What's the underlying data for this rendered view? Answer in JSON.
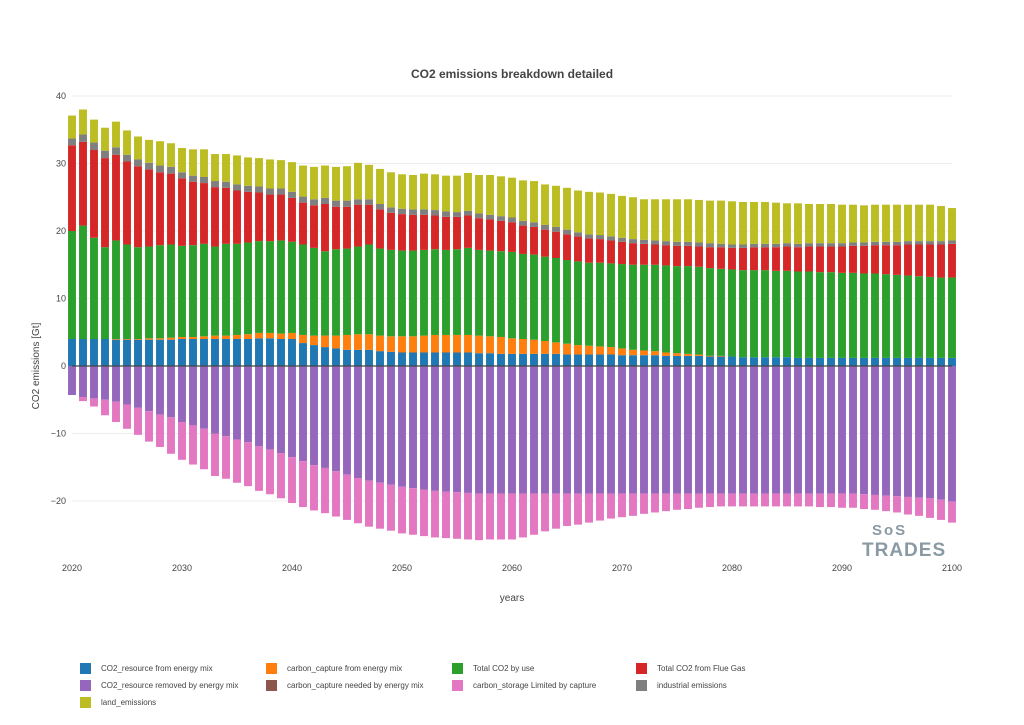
{
  "chart_data": {
    "type": "bar",
    "stacked": true,
    "title": "CO2 emissions breakdown detailed",
    "xlabel": "years",
    "ylabel": "CO2 emissions [Gt]",
    "xlim": [
      2020,
      2100
    ],
    "ylim": [
      -27,
      40
    ],
    "x_ticks": [
      "2020",
      "2030",
      "2040",
      "2050",
      "2060",
      "2070",
      "2080",
      "2090",
      "2100"
    ],
    "y_ticks": [
      "40",
      "30",
      "20",
      "10",
      "0",
      "−10",
      "−20"
    ],
    "grid": true,
    "legend_position": "bottom",
    "x": [
      2020,
      2021,
      2022,
      2023,
      2024,
      2025,
      2026,
      2027,
      2028,
      2029,
      2030,
      2031,
      2032,
      2033,
      2034,
      2035,
      2036,
      2037,
      2038,
      2039,
      2040,
      2041,
      2042,
      2043,
      2044,
      2045,
      2046,
      2047,
      2048,
      2049,
      2050,
      2051,
      2052,
      2053,
      2054,
      2055,
      2056,
      2057,
      2058,
      2059,
      2060,
      2061,
      2062,
      2063,
      2064,
      2065,
      2066,
      2067,
      2068,
      2069,
      2070,
      2071,
      2072,
      2073,
      2074,
      2075,
      2076,
      2077,
      2078,
      2079,
      2080,
      2081,
      2082,
      2083,
      2084,
      2085,
      2086,
      2087,
      2088,
      2089,
      2090,
      2091,
      2092,
      2093,
      2094,
      2095,
      2096,
      2097,
      2098,
      2099,
      2100
    ],
    "series": [
      {
        "name": "CO2_resource from energy mix",
        "color": "#1f77b4",
        "values": [
          4.0,
          4.0,
          4.0,
          4.0,
          3.9,
          3.9,
          3.9,
          3.9,
          3.9,
          3.9,
          4.0,
          4.0,
          4.0,
          4.0,
          4.0,
          4.0,
          4.0,
          4.1,
          4.1,
          4.0,
          4.0,
          3.4,
          3.1,
          2.8,
          2.6,
          2.4,
          2.4,
          2.4,
          2.2,
          2.1,
          2.0,
          2.0,
          2.0,
          2.0,
          2.0,
          2.0,
          2.0,
          1.9,
          1.9,
          1.8,
          1.8,
          1.8,
          1.8,
          1.8,
          1.8,
          1.7,
          1.7,
          1.7,
          1.7,
          1.7,
          1.6,
          1.6,
          1.6,
          1.6,
          1.5,
          1.5,
          1.5,
          1.5,
          1.4,
          1.4,
          1.4,
          1.3,
          1.3,
          1.3,
          1.3,
          1.3,
          1.2,
          1.2,
          1.2,
          1.2,
          1.2,
          1.2,
          1.2,
          1.2,
          1.2,
          1.2,
          1.2,
          1.2,
          1.2,
          1.2,
          1.2
        ]
      },
      {
        "name": "carbon_capture from energy mix",
        "color": "#ff7f0e",
        "values": [
          0.0,
          0.0,
          0.0,
          0.0,
          0.1,
          0.1,
          0.1,
          0.2,
          0.2,
          0.3,
          0.3,
          0.3,
          0.4,
          0.5,
          0.5,
          0.6,
          0.7,
          0.8,
          0.8,
          0.8,
          0.9,
          1.2,
          1.4,
          1.7,
          1.9,
          2.2,
          2.3,
          2.3,
          2.3,
          2.3,
          2.4,
          2.4,
          2.5,
          2.6,
          2.6,
          2.6,
          2.6,
          2.6,
          2.5,
          2.5,
          2.3,
          2.2,
          2.1,
          1.9,
          1.7,
          1.6,
          1.4,
          1.3,
          1.2,
          1.1,
          1.0,
          0.8,
          0.7,
          0.6,
          0.5,
          0.4,
          0.3,
          0.2,
          0.1,
          0.1,
          0.0,
          0.0,
          0.0,
          0.0,
          0.0,
          0.0,
          0.0,
          0.0,
          0.0,
          0.0,
          0.0,
          0.0,
          0.0,
          0.0,
          0.0,
          0.0,
          0.0,
          0.0,
          0.0,
          0.0,
          0.0
        ]
      },
      {
        "name": "Total CO2 by use",
        "color": "#2ca02c",
        "values": [
          16.0,
          16.8,
          15.0,
          13.6,
          14.6,
          14.0,
          13.6,
          13.6,
          13.8,
          13.8,
          13.5,
          13.6,
          13.7,
          13.2,
          13.6,
          13.5,
          13.6,
          13.6,
          13.6,
          13.8,
          13.5,
          13.4,
          13.0,
          12.5,
          12.8,
          12.8,
          13.0,
          13.3,
          12.9,
          12.8,
          12.7,
          12.7,
          12.7,
          12.7,
          12.6,
          12.7,
          12.9,
          12.7,
          12.7,
          12.7,
          12.8,
          12.6,
          12.6,
          12.5,
          12.5,
          12.4,
          12.4,
          12.3,
          12.4,
          12.4,
          12.5,
          12.6,
          12.7,
          12.8,
          12.9,
          12.9,
          13.0,
          13.0,
          13.0,
          12.9,
          12.9,
          12.9,
          12.9,
          12.9,
          12.8,
          12.8,
          12.8,
          12.8,
          12.7,
          12.7,
          12.6,
          12.6,
          12.5,
          12.5,
          12.4,
          12.3,
          12.2,
          12.1,
          12.0,
          11.9,
          11.9
        ]
      },
      {
        "name": "Total CO2 from Flue Gas",
        "color": "#d62728",
        "values": [
          12.7,
          12.4,
          13.0,
          13.2,
          12.7,
          12.3,
          12.0,
          11.4,
          10.8,
          10.5,
          10.0,
          9.4,
          9.0,
          8.8,
          8.3,
          7.9,
          7.5,
          7.2,
          6.9,
          6.8,
          6.5,
          6.2,
          6.3,
          7.0,
          6.3,
          6.2,
          6.2,
          5.9,
          5.8,
          5.5,
          5.4,
          5.3,
          5.2,
          5.0,
          4.9,
          4.8,
          4.8,
          4.7,
          4.6,
          4.5,
          4.4,
          4.2,
          4.1,
          4.0,
          3.9,
          3.8,
          3.7,
          3.6,
          3.5,
          3.4,
          3.3,
          3.2,
          3.1,
          3.0,
          3.0,
          3.0,
          3.0,
          3.0,
          3.1,
          3.2,
          3.2,
          3.3,
          3.4,
          3.4,
          3.5,
          3.6,
          3.6,
          3.7,
          3.8,
          3.8,
          3.9,
          4.0,
          4.1,
          4.2,
          4.3,
          4.4,
          4.6,
          4.7,
          4.8,
          4.9,
          5.0
        ]
      },
      {
        "name": "carbon_capture needed by energy mix",
        "color": "#8c564b",
        "values": [
          0.0,
          0.0,
          0.0,
          0.0,
          0.0,
          0.0,
          0.0,
          0.0,
          0.0,
          0.0,
          0.0,
          0.0,
          0.0,
          0.0,
          0.0,
          0.0,
          0.0,
          0.0,
          0.0,
          0.0,
          0.0,
          0.0,
          0.0,
          0.0,
          0.0,
          0.0,
          0.0,
          0.0,
          0.0,
          0.0,
          0.0,
          0.0,
          0.0,
          0.0,
          0.0,
          0.0,
          0.0,
          0.0,
          0.0,
          0.0,
          0.0,
          0.0,
          0.0,
          0.0,
          0.0,
          0.0,
          0.0,
          0.0,
          0.0,
          0.0,
          0.0,
          0.0,
          0.0,
          0.0,
          0.0,
          0.0,
          0.0,
          0.0,
          0.0,
          0.0,
          0.0,
          0.0,
          0.0,
          0.0,
          0.0,
          0.0,
          0.0,
          0.0,
          0.0,
          0.0,
          0.0,
          0.0,
          0.0,
          0.0,
          0.0,
          0.0,
          0.0,
          0.0,
          0.0,
          0.0,
          0.0
        ]
      },
      {
        "name": "industrial emissions",
        "color": "#7f7f7f",
        "values": [
          1.0,
          1.1,
          1.1,
          1.1,
          1.1,
          1.0,
          1.0,
          1.0,
          1.0,
          1.0,
          0.9,
          0.9,
          0.9,
          0.9,
          0.9,
          0.9,
          0.9,
          0.9,
          0.9,
          0.9,
          0.9,
          0.9,
          0.9,
          0.9,
          0.9,
          0.9,
          0.8,
          0.8,
          0.8,
          0.8,
          0.8,
          0.8,
          0.8,
          0.8,
          0.8,
          0.7,
          0.7,
          0.7,
          0.7,
          0.7,
          0.7,
          0.7,
          0.7,
          0.7,
          0.7,
          0.7,
          0.6,
          0.6,
          0.6,
          0.6,
          0.6,
          0.6,
          0.6,
          0.6,
          0.6,
          0.6,
          0.6,
          0.6,
          0.6,
          0.5,
          0.5,
          0.5,
          0.5,
          0.5,
          0.5,
          0.5,
          0.5,
          0.5,
          0.5,
          0.5,
          0.5,
          0.5,
          0.5,
          0.5,
          0.5,
          0.5,
          0.5,
          0.5,
          0.5,
          0.5,
          0.5
        ]
      },
      {
        "name": "land_emissions",
        "color": "#bcbd22",
        "values": [
          3.4,
          3.7,
          3.4,
          3.4,
          3.8,
          3.6,
          3.4,
          3.4,
          3.6,
          3.5,
          3.6,
          3.9,
          4.1,
          4.0,
          4.1,
          4.3,
          4.2,
          4.2,
          4.3,
          4.2,
          4.4,
          4.6,
          4.8,
          4.8,
          5.0,
          5.1,
          5.4,
          5.1,
          5.2,
          5.2,
          5.1,
          5.1,
          5.3,
          5.3,
          5.3,
          5.4,
          5.6,
          5.7,
          5.9,
          5.9,
          5.9,
          6.0,
          6.1,
          6.0,
          6.1,
          6.2,
          6.2,
          6.3,
          6.3,
          6.3,
          6.2,
          6.2,
          6.0,
          6.1,
          6.2,
          6.3,
          6.3,
          6.3,
          6.3,
          6.4,
          6.4,
          6.3,
          6.2,
          6.2,
          6.1,
          5.9,
          6.0,
          5.8,
          5.8,
          5.8,
          5.7,
          5.6,
          5.5,
          5.5,
          5.5,
          5.5,
          5.4,
          5.4,
          5.4,
          5.2,
          4.8
        ]
      },
      {
        "name": "CO2_resource removed by energy mix",
        "color": "#9467bd",
        "values": [
          -4.3,
          -4.6,
          -4.8,
          -5.0,
          -5.3,
          -5.7,
          -6.2,
          -6.7,
          -7.2,
          -7.6,
          -8.3,
          -8.8,
          -9.3,
          -10.0,
          -10.4,
          -10.9,
          -11.3,
          -11.9,
          -12.4,
          -12.9,
          -13.5,
          -14.1,
          -14.7,
          -15.1,
          -15.6,
          -16.1,
          -16.6,
          -17.0,
          -17.3,
          -17.6,
          -17.9,
          -18.1,
          -18.3,
          -18.5,
          -18.6,
          -18.7,
          -18.8,
          -18.9,
          -18.9,
          -18.9,
          -18.9,
          -18.9,
          -18.9,
          -18.9,
          -18.9,
          -18.9,
          -18.9,
          -18.9,
          -18.9,
          -18.9,
          -18.9,
          -18.9,
          -18.9,
          -18.9,
          -18.9,
          -18.9,
          -18.9,
          -18.9,
          -18.9,
          -18.9,
          -18.9,
          -18.9,
          -18.9,
          -18.9,
          -18.9,
          -18.9,
          -18.9,
          -18.9,
          -18.9,
          -18.9,
          -18.9,
          -18.9,
          -19.0,
          -19.1,
          -19.2,
          -19.3,
          -19.4,
          -19.5,
          -19.6,
          -19.8,
          -20.1
        ]
      },
      {
        "name": "carbon_storage Limited by capture",
        "color": "#e377c2",
        "values": [
          0.0,
          -0.6,
          -1.2,
          -2.3,
          -3.0,
          -3.6,
          -4.0,
          -4.5,
          -4.8,
          -5.4,
          -5.6,
          -5.8,
          -6.0,
          -6.3,
          -6.3,
          -6.4,
          -6.5,
          -6.6,
          -6.6,
          -6.7,
          -6.8,
          -6.8,
          -6.7,
          -6.7,
          -6.7,
          -6.7,
          -6.7,
          -6.8,
          -6.8,
          -6.8,
          -6.9,
          -6.9,
          -6.9,
          -6.9,
          -6.9,
          -6.9,
          -6.9,
          -6.9,
          -6.8,
          -6.8,
          -6.8,
          -6.5,
          -6.1,
          -5.6,
          -5.2,
          -4.8,
          -4.6,
          -4.3,
          -4.0,
          -3.7,
          -3.5,
          -3.3,
          -3.0,
          -2.8,
          -2.6,
          -2.4,
          -2.3,
          -2.1,
          -2.0,
          -1.9,
          -1.9,
          -1.9,
          -1.9,
          -1.9,
          -1.9,
          -1.9,
          -1.9,
          -1.9,
          -2.0,
          -2.0,
          -2.1,
          -2.1,
          -2.2,
          -2.2,
          -2.3,
          -2.4,
          -2.6,
          -2.7,
          -2.9,
          -3.0,
          -3.1
        ]
      }
    ]
  },
  "legend": [
    {
      "label": "CO2_resource from energy mix",
      "color": "#1f77b4"
    },
    {
      "label": "carbon_capture from energy mix",
      "color": "#ff7f0e"
    },
    {
      "label": "Total CO2 by use",
      "color": "#2ca02c"
    },
    {
      "label": "Total CO2 from Flue Gas",
      "color": "#d62728"
    },
    {
      "label": "CO2_resource removed by energy mix",
      "color": "#9467bd"
    },
    {
      "label": "carbon_capture needed by energy mix",
      "color": "#8c564b"
    },
    {
      "label": "carbon_storage Limited by capture",
      "color": "#e377c2"
    },
    {
      "label": "industrial emissions",
      "color": "#7f7f7f"
    },
    {
      "label": "land_emissions",
      "color": "#bcbd22"
    }
  ],
  "watermark": {
    "top": "SoS",
    "bottom": "TRADES"
  }
}
